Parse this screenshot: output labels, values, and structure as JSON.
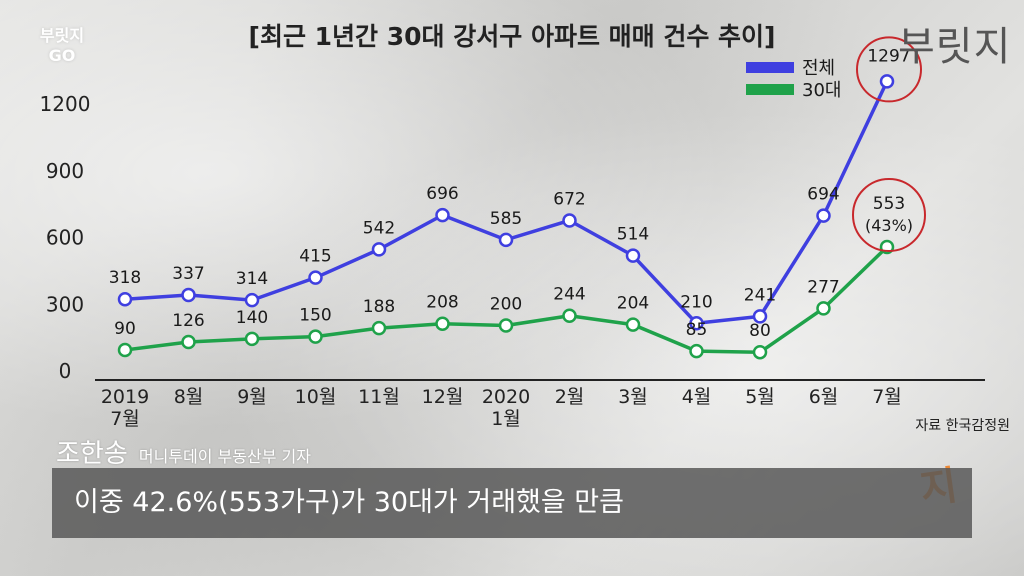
{
  "watermark": {
    "line1": "부릿지",
    "line2": "GO"
  },
  "brand": {
    "logo_text": "부릿지",
    "logo_corner": "지"
  },
  "reporter": {
    "name": "조한송",
    "role": "머니투데이 부동산부 기자"
  },
  "caption": {
    "text": "이중 42.6%(553가구)가 30대가 거래했을 만큼"
  },
  "colors": {
    "total": "#3f3fe0",
    "thirties": "#1fa24a",
    "highlight": "#c8282c",
    "accent": "#ee7f22"
  },
  "chart_data": {
    "type": "line",
    "title": "[최근 1년간 30대 강서구 아파트 매매 건수 추이]",
    "source": "자료 한국감정원",
    "categories": [
      [
        "2019",
        "7월"
      ],
      [
        "8월"
      ],
      [
        "9월"
      ],
      [
        "10월"
      ],
      [
        "11월"
      ],
      [
        "12월"
      ],
      [
        "2020",
        "1월"
      ],
      [
        "2월"
      ],
      [
        "3월"
      ],
      [
        "4월"
      ],
      [
        "5월"
      ],
      [
        "6월"
      ],
      [
        "7월"
      ]
    ],
    "ylim": [
      0,
      1300
    ],
    "yticks": [
      0,
      300,
      600,
      900,
      1200
    ],
    "grid": false,
    "legend_position": "top-right",
    "series": [
      {
        "name": "전체",
        "values": [
          318,
          337,
          314,
          415,
          542,
          696,
          585,
          672,
          514,
          210,
          241,
          694,
          1297
        ]
      },
      {
        "name": "30대",
        "values": [
          90,
          126,
          140,
          150,
          188,
          208,
          200,
          244,
          204,
          85,
          80,
          277,
          553
        ]
      }
    ],
    "annotations": [
      {
        "series": 0,
        "index": 12,
        "text": "1297"
      },
      {
        "series": 1,
        "index": 12,
        "text": "553",
        "subtext": "(43%)"
      }
    ]
  }
}
